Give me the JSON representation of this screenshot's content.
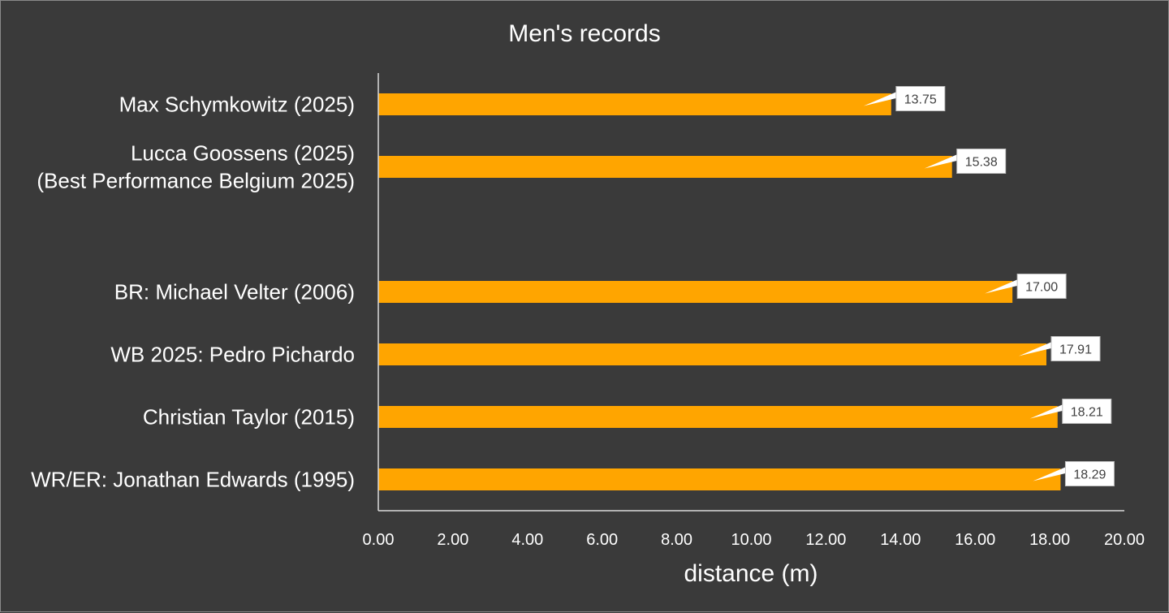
{
  "chart_data": {
    "type": "bar",
    "orientation": "horizontal",
    "title": "Men's records",
    "xlabel": "distance (m)",
    "ylabel": "",
    "xlim": [
      0,
      20
    ],
    "x_ticks": [
      "0.00",
      "2.00",
      "4.00",
      "6.00",
      "8.00",
      "10.00",
      "12.00",
      "14.00",
      "16.00",
      "18.00",
      "20.00"
    ],
    "categories": [
      {
        "lines": [
          "Max Schymkowitz (2025)"
        ],
        "value": 13.75,
        "label": "13.75"
      },
      {
        "lines": [
          "Lucca Goossens (2025)",
          "(Best Performance Belgium 2025)"
        ],
        "value": 15.38,
        "label": "15.38"
      },
      {
        "lines": [
          ""
        ],
        "value": null,
        "label": ""
      },
      {
        "lines": [
          "BR: Michael Velter (2006)"
        ],
        "value": 17.0,
        "label": "17.00"
      },
      {
        "lines": [
          "WB 2025: Pedro Pichardo"
        ],
        "value": 17.91,
        "label": "17.91"
      },
      {
        "lines": [
          "Christian Taylor (2015)"
        ],
        "value": 18.21,
        "label": "18.21"
      },
      {
        "lines": [
          "WR/ER: Jonathan Edwards (1995)"
        ],
        "value": 18.29,
        "label": "18.29"
      }
    ],
    "grid": false,
    "legend": "none",
    "colors": {
      "bar": "#FFA500",
      "background": "#3a3a3a",
      "text": "#ffffff",
      "axis": "#d9d9d9",
      "label_box": "#ffffff",
      "label_text": "#404040"
    }
  }
}
